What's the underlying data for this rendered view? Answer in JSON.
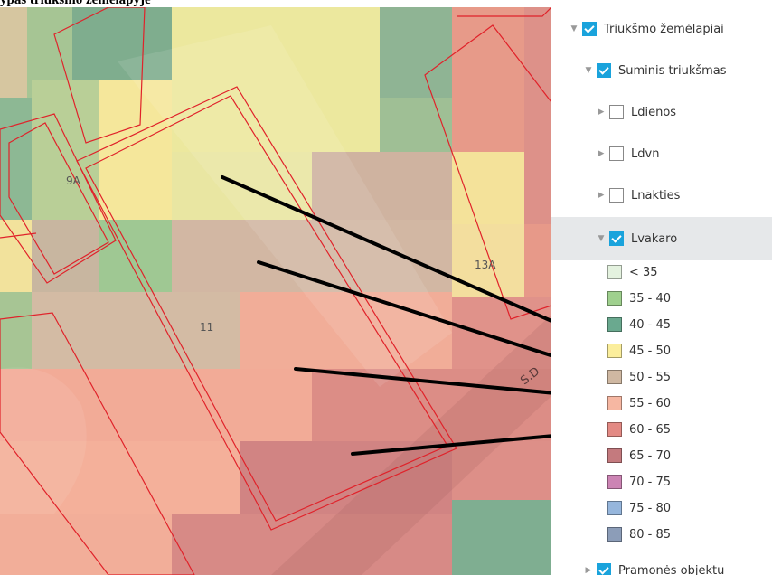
{
  "page_heading": "ypas triukšmo žemėlapyje",
  "map": {
    "building_labels": [
      "9A",
      "11",
      "13A"
    ],
    "street_label": "S.D"
  },
  "tree": [
    {
      "label": "Triukšmo žemėlapiai",
      "checked": true,
      "expanded": true
    },
    {
      "label": "Suminis triukšmas",
      "checked": true,
      "expanded": true
    },
    {
      "label": "Ldienos",
      "checked": false,
      "expanded": false
    },
    {
      "label": "Ldvn",
      "checked": false,
      "expanded": false
    },
    {
      "label": "Lnakties",
      "checked": false,
      "expanded": false
    },
    {
      "label": "Lvakaro",
      "checked": true,
      "expanded": true,
      "selected": true
    },
    {
      "label": "Pramonės objektu",
      "checked": true,
      "expanded": false
    }
  ],
  "legend": [
    {
      "label": "< 35",
      "color": "#e4f2df"
    },
    {
      "label": "35 - 40",
      "color": "#9fd08e"
    },
    {
      "label": "40 - 45",
      "color": "#6aa98f"
    },
    {
      "label": "45 - 50",
      "color": "#fbee9c"
    },
    {
      "label": "50 - 55",
      "color": "#cfb8a2"
    },
    {
      "label": "55 - 60",
      "color": "#f6b7a2"
    },
    {
      "label": "60 - 65",
      "color": "#e38a84"
    },
    {
      "label": "65 - 70",
      "color": "#c47a7e"
    },
    {
      "label": "70 - 75",
      "color": "#cc84b4"
    },
    {
      "label": "75 - 80",
      "color": "#96b6dc"
    },
    {
      "label": "80 - 85",
      "color": "#8c9db8"
    }
  ]
}
